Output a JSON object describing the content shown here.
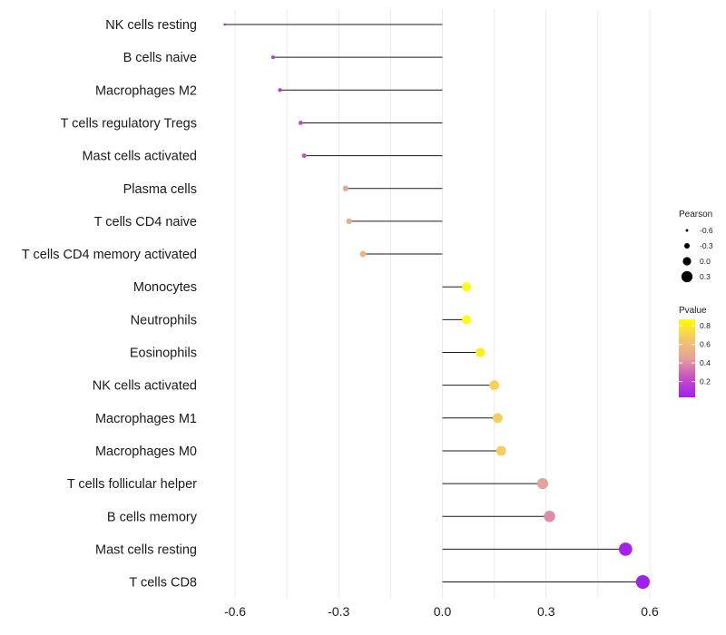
{
  "chart_data": {
    "type": "lollipop",
    "categories": [
      "NK cells resting",
      "B cells naive",
      "Macrophages M2",
      "T cells regulatory  Tregs",
      "Mast cells activated",
      "Plasma cells",
      "T cells CD4 naive",
      "T cells CD4 memory activated",
      "Monocytes",
      "Neutrophils",
      "Eosinophils",
      "NK cells activated",
      "Macrophages M1",
      "Macrophages M0",
      "T cells follicular helper",
      "B cells memory",
      "Mast cells resting",
      "T cells CD8"
    ],
    "values": [
      -0.63,
      -0.49,
      -0.47,
      -0.41,
      -0.4,
      -0.28,
      -0.27,
      -0.23,
      0.07,
      0.07,
      0.11,
      0.15,
      0.16,
      0.17,
      0.29,
      0.31,
      0.53,
      0.58
    ],
    "pvalues": [
      0.05,
      0.12,
      0.15,
      0.22,
      0.24,
      0.48,
      0.5,
      0.55,
      0.87,
      0.86,
      0.82,
      0.7,
      0.69,
      0.68,
      0.45,
      0.4,
      0.05,
      0.03
    ],
    "xlim": [
      -0.67,
      0.6
    ],
    "xticks": [
      -0.6,
      -0.3,
      0.0,
      0.3,
      0.6
    ],
    "xtick_labels": [
      "-0.6",
      "-0.3",
      "0.0",
      "0.3",
      "0.6"
    ],
    "xlabel": "",
    "ylabel": "",
    "title": "",
    "grid": true,
    "legend_size": {
      "title": "Pearson",
      "values": [
        -0.6,
        -0.3,
        0.0,
        0.3
      ],
      "labels": [
        "-0.6",
        "-0.3",
        "0.0",
        "0.3"
      ]
    },
    "legend_color": {
      "title": "Pvalue",
      "range": [
        0.03,
        0.87
      ],
      "ticks": [
        0.8,
        0.6,
        0.4,
        0.2
      ],
      "labels": [
        "0.8",
        "0.6",
        "0.4",
        "0.2"
      ],
      "colors": [
        "#a020f0",
        "#c84fc4",
        "#e4a29a",
        "#f5c66a",
        "#ffff00"
      ]
    },
    "legend_position": "right"
  }
}
